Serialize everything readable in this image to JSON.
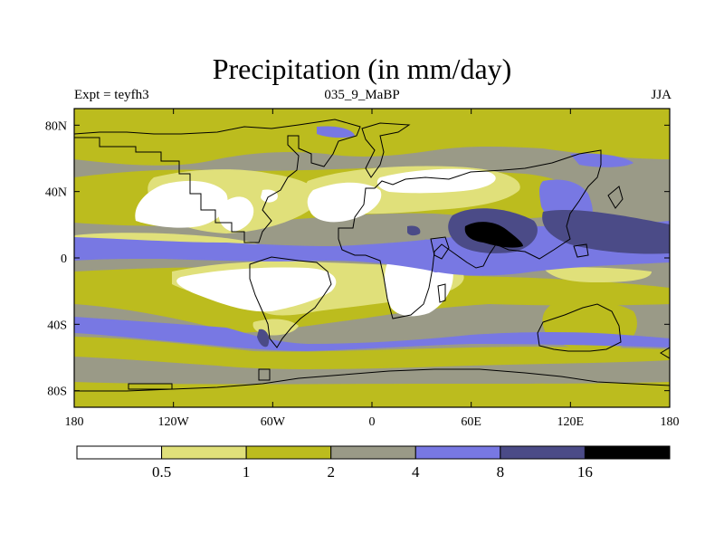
{
  "title": "Precipitation (in mm/day)",
  "subtitle_left": "Expt = teyfh3",
  "subtitle_center": "035_9_MaBP",
  "subtitle_right": "JJA",
  "chart_data": {
    "type": "heatmap",
    "title": "Precipitation (in mm/day)",
    "x_axis": {
      "range": [
        -180,
        180
      ],
      "ticks": [
        -180,
        -120,
        -60,
        0,
        60,
        120,
        180
      ],
      "tick_labels": [
        "180",
        "120W",
        "60W",
        "0",
        "60E",
        "120E",
        "180"
      ]
    },
    "y_axis": {
      "range": [
        -90,
        90
      ],
      "ticks": [
        80,
        40,
        0,
        -40,
        -80
      ],
      "tick_labels": [
        "80N",
        "40N",
        "0",
        "40S",
        "80S"
      ]
    },
    "legend": {
      "placement": "bottom",
      "levels": [
        0.5,
        1,
        2,
        4,
        8,
        16
      ],
      "level_labels": [
        "0.5",
        "1",
        "2",
        "4",
        "8",
        "16"
      ],
      "colors": [
        "#ffffff",
        "#e0e07a",
        "#bcbc1e",
        "#9a9a87",
        "#7878e3",
        "#4b4b87",
        "#000000"
      ]
    }
  },
  "colors": {
    "below_0_5": "#ffffff",
    "c0_5_1": "#e0e07a",
    "c1_2": "#bcbc1e",
    "c2_4": "#9a9a87",
    "c4_8": "#7878e3",
    "c8_16": "#4b4b87",
    "above_16": "#000000"
  }
}
